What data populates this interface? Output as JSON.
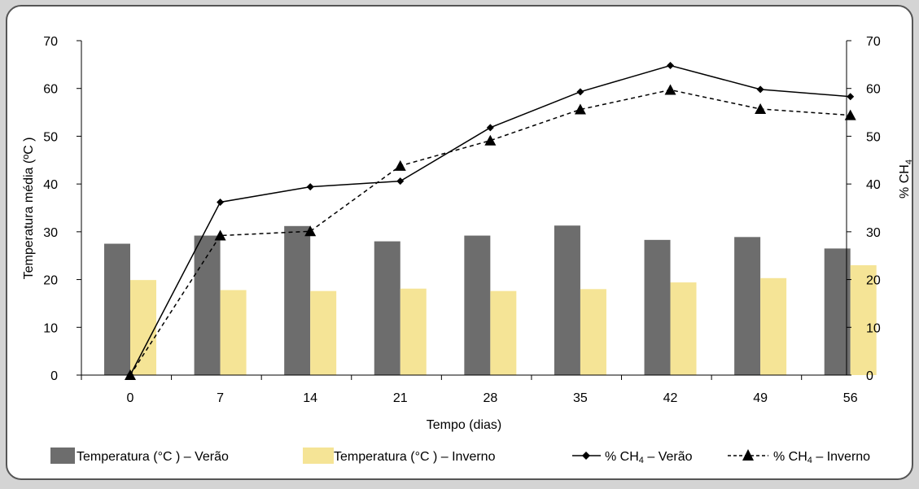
{
  "chart_data": {
    "type": "bar",
    "categories": [
      "0",
      "7",
      "14",
      "21",
      "28",
      "35",
      "42",
      "49",
      "56"
    ],
    "xlabel": "Tempo (dias)",
    "ylabel_left": "Temperatura média (ºC )",
    "ylabel_right_prefix": "% CH",
    "ylabel_right_sub": "4",
    "ylim_left": [
      0,
      70
    ],
    "ylim_right": [
      0,
      70
    ],
    "yticks_left": [
      "0",
      "10",
      "20",
      "30",
      "40",
      "50",
      "60",
      "70"
    ],
    "yticks_right": [
      "0",
      "10",
      "20",
      "30",
      "40",
      "50",
      "60",
      "70"
    ],
    "grid": false,
    "legend_position": "bottom",
    "series": [
      {
        "name": "Temperatura (°C ) – Verão",
        "type": "bar",
        "axis": "left",
        "color": "#6d6d6d",
        "values": [
          27.5,
          29.2,
          31.2,
          28.0,
          29.2,
          31.3,
          28.3,
          28.9,
          26.5
        ]
      },
      {
        "name": "Temperatura (°C ) – Inverno",
        "type": "bar",
        "axis": "left",
        "color": "#f5e496",
        "values": [
          19.9,
          17.8,
          17.6,
          18.1,
          17.6,
          18.0,
          19.4,
          20.3,
          23.0
        ]
      },
      {
        "name_prefix": "% CH",
        "name_sub": "4",
        "name_suffix": " – Verão",
        "type": "line",
        "axis": "right",
        "marker": "diamond",
        "dash": "solid",
        "color": "#000000",
        "values": [
          0,
          36.2,
          39.4,
          40.6,
          51.8,
          59.3,
          64.8,
          59.8,
          58.3
        ]
      },
      {
        "name_prefix": "% CH",
        "name_sub": "4",
        "name_suffix": " – Inverno",
        "type": "line",
        "axis": "right",
        "marker": "triangle",
        "dash": "dashed",
        "color": "#000000",
        "values": [
          0,
          29.2,
          30.1,
          43.8,
          49.1,
          55.6,
          59.7,
          55.7,
          54.4
        ]
      }
    ]
  },
  "colors": {
    "outer_background": "#d4d4d4",
    "panel_background": "#ffffff",
    "panel_border": "#555555",
    "bar_summer": "#6d6d6d",
    "bar_winter": "#f5e496"
  }
}
